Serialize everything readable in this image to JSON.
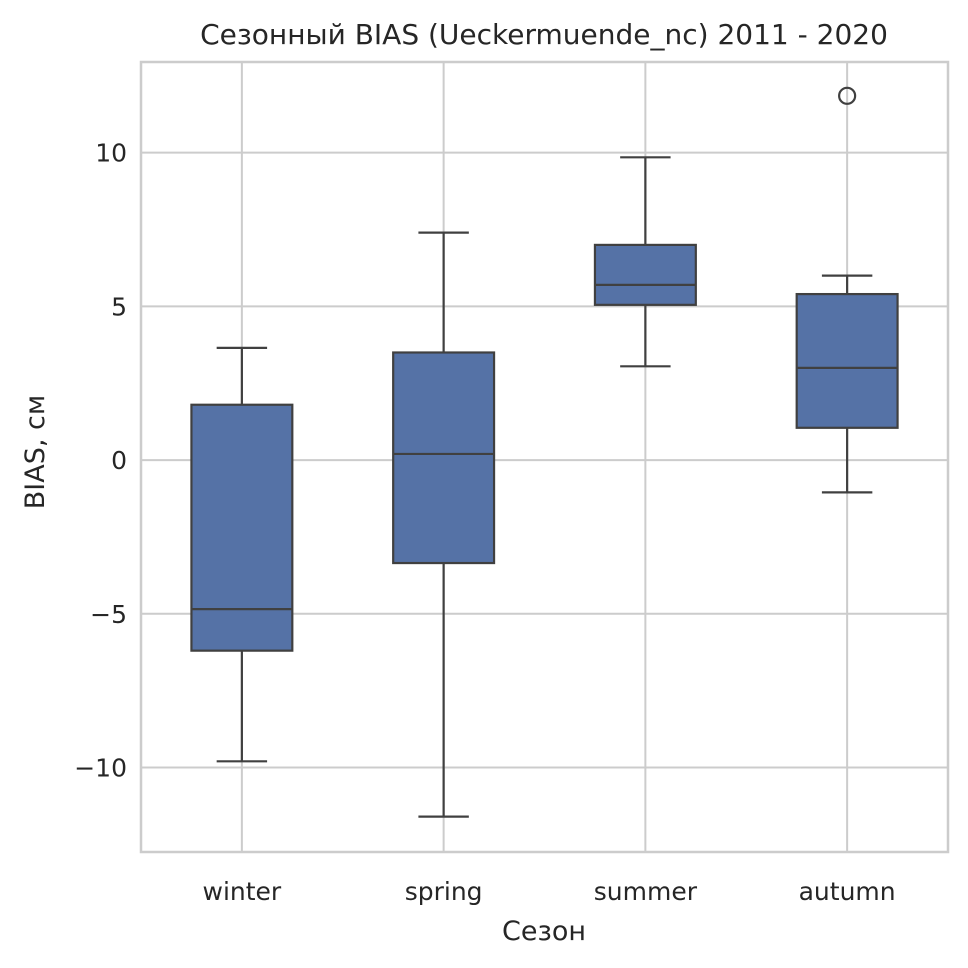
{
  "chart_data": {
    "type": "box",
    "title": "Сезонный BIAS (Ueckermuende_nc) 2011 - 2020",
    "xlabel": "Сезон",
    "ylabel": "BIAS, см",
    "categories": [
      "winter",
      "spring",
      "summer",
      "autumn"
    ],
    "boxes": [
      {
        "category": "winter",
        "whisker_low": -9.8,
        "q1": -6.2,
        "median": -4.85,
        "q3": 1.8,
        "whisker_high": 3.65,
        "outliers": []
      },
      {
        "category": "spring",
        "whisker_low": -11.6,
        "q1": -3.35,
        "median": 0.2,
        "q3": 3.5,
        "whisker_high": 7.4,
        "outliers": []
      },
      {
        "category": "summer",
        "whisker_low": 3.05,
        "q1": 5.05,
        "median": 5.7,
        "q3": 7.0,
        "whisker_high": 9.85,
        "outliers": []
      },
      {
        "category": "autumn",
        "whisker_low": -1.05,
        "q1": 1.05,
        "median": 3.0,
        "q3": 5.4,
        "whisker_high": 6.0,
        "outliers": [
          11.85
        ]
      }
    ],
    "ylim": [
      -12.75,
      12.95
    ],
    "yticks": [
      -10,
      -5,
      0,
      5,
      10
    ],
    "ytick_labels": [
      "−10",
      "−5",
      "0",
      "5",
      "10"
    ],
    "grid": true,
    "box_color": "#5572a6",
    "line_color": "#404040",
    "grid_color": "#cccccc"
  }
}
